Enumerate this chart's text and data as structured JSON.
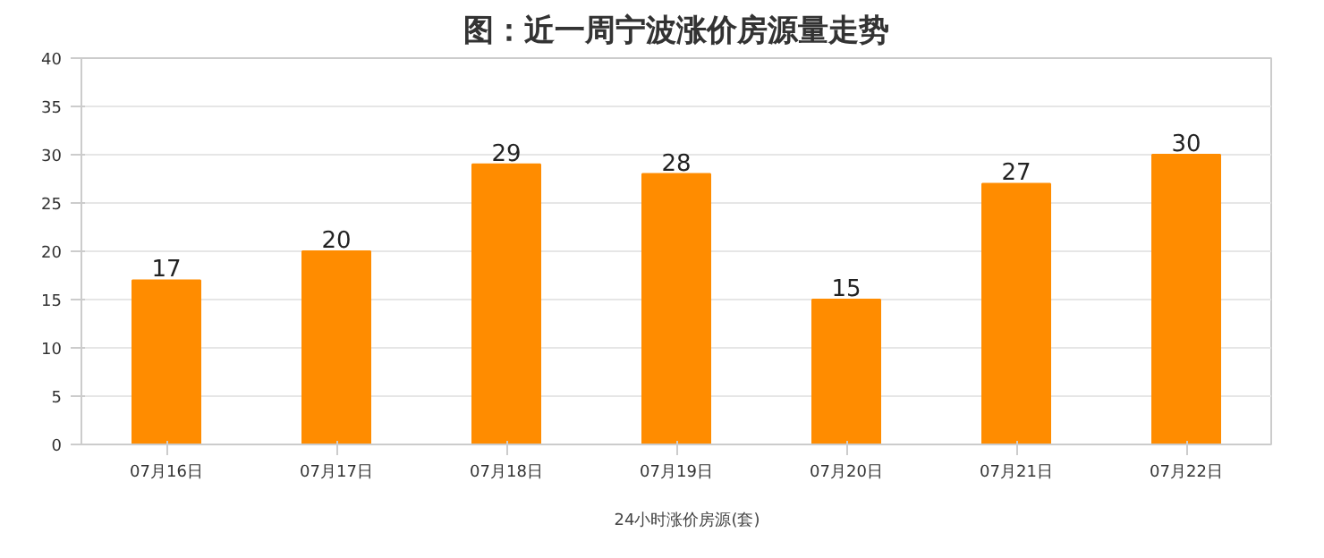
{
  "chart_data": {
    "type": "bar",
    "title": "图：近一周宁波涨价房源量走势",
    "categories": [
      "07月16日",
      "07月17日",
      "07月18日",
      "07月19日",
      "07月20日",
      "07月21日",
      "07月22日"
    ],
    "series": [
      {
        "name": "24小时涨价房源(套)",
        "color": "#ff8c00",
        "values": [
          17,
          20,
          29,
          28,
          15,
          27,
          30
        ]
      }
    ],
    "ylim": [
      0,
      40
    ],
    "yticks": [
      0,
      5,
      10,
      15,
      20,
      25,
      30,
      35,
      40
    ],
    "grid": "y",
    "legend": "bottom",
    "data_labels": true
  }
}
